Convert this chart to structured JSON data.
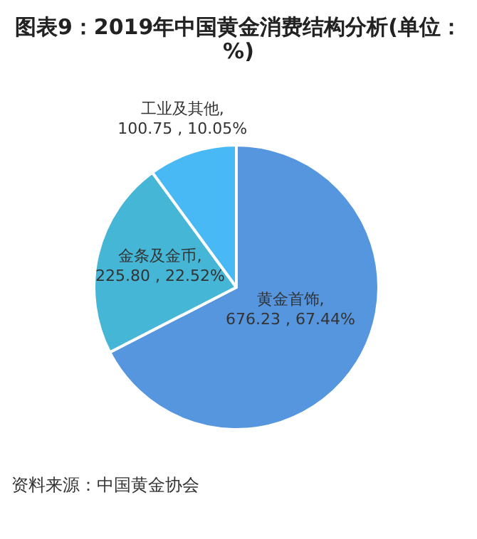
{
  "chart_data": {
    "type": "pie",
    "title": "图表9：2019年中国黄金消费结构分析(单位：%)",
    "categories": [
      "黄金首饰",
      "金条及金币",
      "工业及其他"
    ],
    "values": [
      676.23,
      225.8,
      100.75
    ],
    "value_labels": [
      ", 676.23 , 67.44%",
      ", 225.80 , 22.52%",
      ", 100.75 , 10.05%"
    ],
    "colors": [
      "#5596de",
      "#45b6d6",
      "#48b9f5"
    ],
    "annotations": [
      "资料来源：中国黄金协会"
    ]
  }
}
